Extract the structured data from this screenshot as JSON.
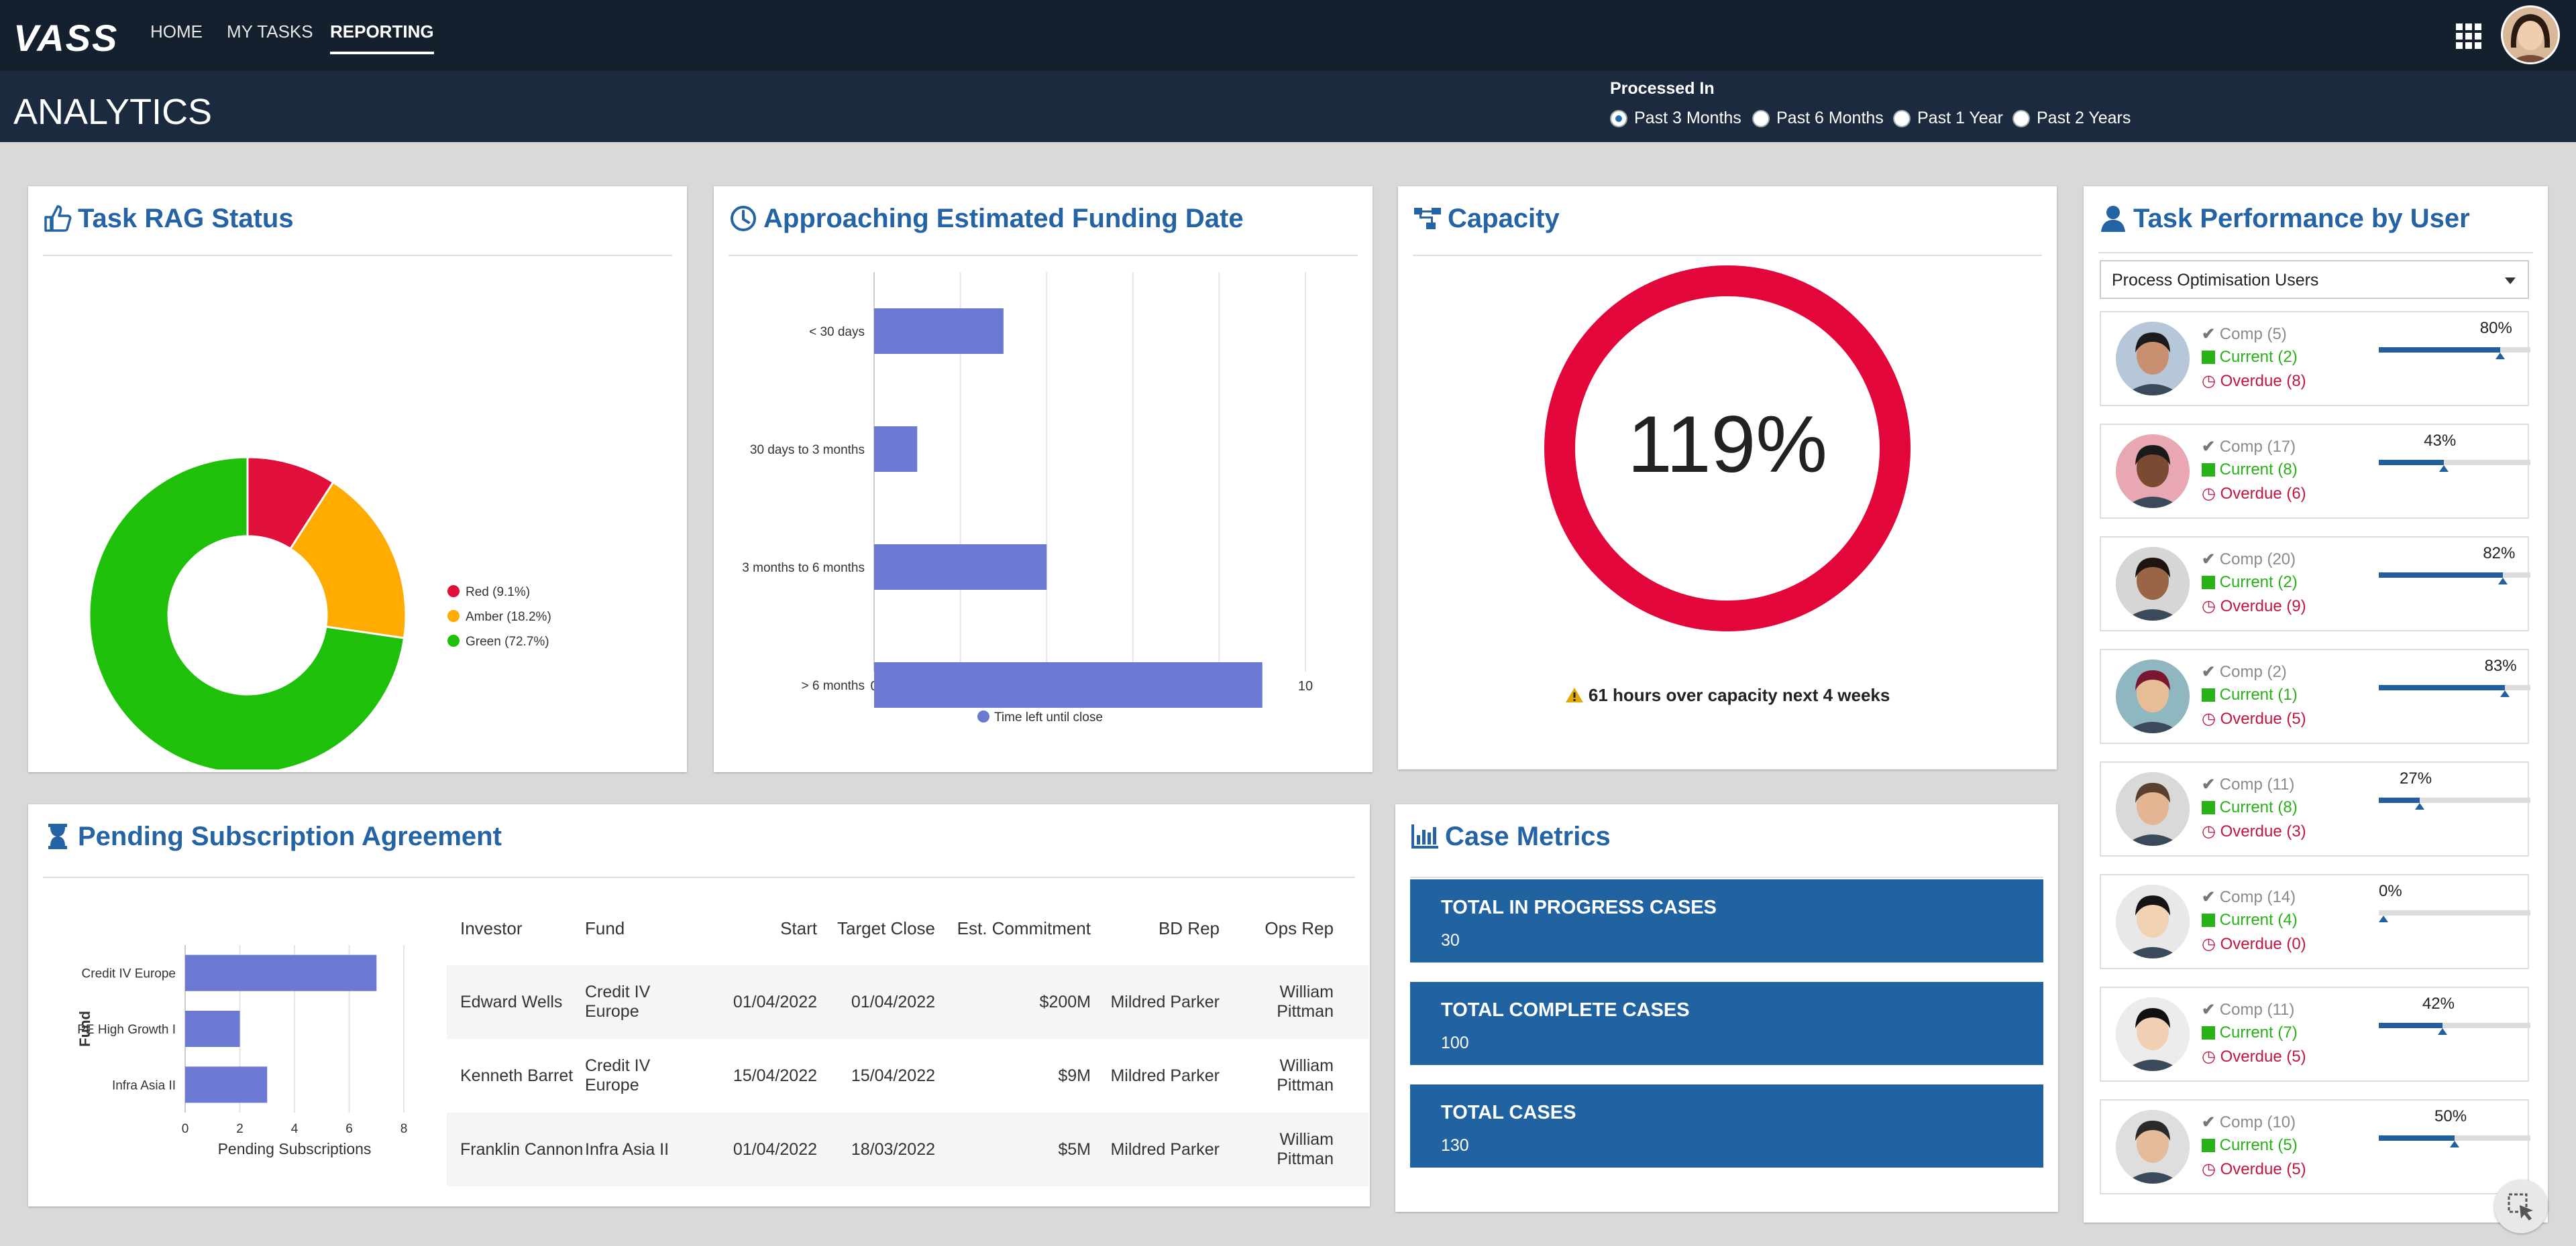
{
  "header": {
    "logo": "VASS",
    "nav": [
      "HOME",
      "MY TASKS",
      "REPORTING"
    ],
    "active_nav": "REPORTING",
    "grid_icon": "apps-grid-icon",
    "avatar_icon": "user-avatar"
  },
  "subheader": {
    "title": "ANALYTICS",
    "processed_label": "Processed In",
    "options": [
      "Past 3 Months",
      "Past 6 Months",
      "Past 1 Year",
      "Past 2 Years"
    ],
    "selected": "Past 3 Months"
  },
  "rag": {
    "title": "Task RAG Status",
    "icon": "thumbs-up-icon",
    "legend": [
      "Red (9.1%)",
      "Amber (18.2%)",
      "Green (72.7%)"
    ],
    "colors": [
      "#e0103a",
      "#ffab00",
      "#1fc00a"
    ]
  },
  "funding": {
    "title": "Approaching Estimated Funding Date",
    "icon": "clock-icon",
    "legend": "Time left until close",
    "color": "#6b79d2"
  },
  "capacity": {
    "title": "Capacity",
    "icon": "hierarchy-icon",
    "value": "119%",
    "note": "61 hours over capacity next 4 weeks",
    "ring_color": "#e3063b"
  },
  "performance": {
    "title": "Task Performance by User",
    "icon": "user-icon",
    "filter": "Process Optimisation Users",
    "users": [
      {
        "comp": "Comp (5)",
        "current": "Current (2)",
        "overdue": "Overdue (8)",
        "pct": "80%",
        "value": 0.8
      },
      {
        "comp": "Comp (17)",
        "current": "Current (8)",
        "overdue": "Overdue (6)",
        "pct": "43%",
        "value": 0.43
      },
      {
        "comp": "Comp (20)",
        "current": "Current (2)",
        "overdue": "Overdue (9)",
        "pct": "82%",
        "value": 0.82
      },
      {
        "comp": "Comp (2)",
        "current": "Current (1)",
        "overdue": "Overdue (5)",
        "pct": "83%",
        "value": 0.83
      },
      {
        "comp": "Comp (11)",
        "current": "Current (8)",
        "overdue": "Overdue (3)",
        "pct": "27%",
        "value": 0.27
      },
      {
        "comp": "Comp (14)",
        "current": "Current (4)",
        "overdue": "Overdue (0)",
        "pct": "0%",
        "value": 0
      },
      {
        "comp": "Comp (11)",
        "current": "Current (7)",
        "overdue": "Overdue (5)",
        "pct": "42%",
        "value": 0.42
      },
      {
        "comp": "Comp (10)",
        "current": "Current (5)",
        "overdue": "Overdue (5)",
        "pct": "50%",
        "value": 0.5
      }
    ]
  },
  "pending": {
    "title": "Pending Subscription Agreement",
    "icon": "hourglass-icon",
    "table": {
      "headers": [
        "Investor",
        "Fund",
        "Start",
        "Target Close",
        "Est. Commitment",
        "BD Rep",
        "Ops Rep"
      ],
      "rows": [
        [
          "Edward Wells",
          "Credit IV Europe",
          "01/04/2022",
          "01/04/2022",
          "$200M",
          "Mildred Parker",
          "William Pittman"
        ],
        [
          "Kenneth Barret",
          "Credit IV Europe",
          "15/04/2022",
          "15/04/2022",
          "$9M",
          "Mildred Parker",
          "William Pittman"
        ],
        [
          "Franklin Cannon",
          "Infra Asia II",
          "01/04/2022",
          "18/03/2022",
          "$5M",
          "Mildred Parker",
          "William Pittman"
        ]
      ]
    }
  },
  "metrics": {
    "title": "Case Metrics",
    "icon": "bar-chart-icon",
    "boxes": [
      {
        "label": "TOTAL IN PROGRESS CASES",
        "value": "30"
      },
      {
        "label": "TOTAL COMPLETE CASES",
        "value": "100"
      },
      {
        "label": "TOTAL CASES",
        "value": "130"
      }
    ]
  },
  "fab_icon": "cursor-select-icon",
  "chart_data": [
    {
      "type": "pie",
      "categories": [
        "Red",
        "Amber",
        "Green"
      ],
      "values": [
        9.1,
        18.2,
        72.7
      ],
      "donut": true,
      "legend": "right"
    },
    {
      "type": "bar",
      "orientation": "horizontal",
      "categories": [
        "< 30 days",
        "30 days to 3 months",
        "3 months to 6 months",
        "> 6 months"
      ],
      "series": [
        {
          "name": "Time left until close",
          "values": [
            3,
            1,
            4,
            9
          ]
        }
      ],
      "xlim": [
        0,
        10
      ],
      "xticks": [
        0,
        2,
        4,
        6,
        8,
        10
      ],
      "grid": true,
      "legend": "bottom"
    },
    {
      "type": "bar",
      "orientation": "horizontal",
      "categories": [
        "Credit IV Europe",
        "PE High Growth I",
        "Infra Asia II"
      ],
      "values": [
        7,
        2,
        3
      ],
      "xlabel": "Pending Subscriptions",
      "ylabel": "Fund",
      "xlim": [
        0,
        8
      ],
      "xticks": [
        0,
        2,
        4,
        6,
        8
      ],
      "grid": true
    }
  ]
}
